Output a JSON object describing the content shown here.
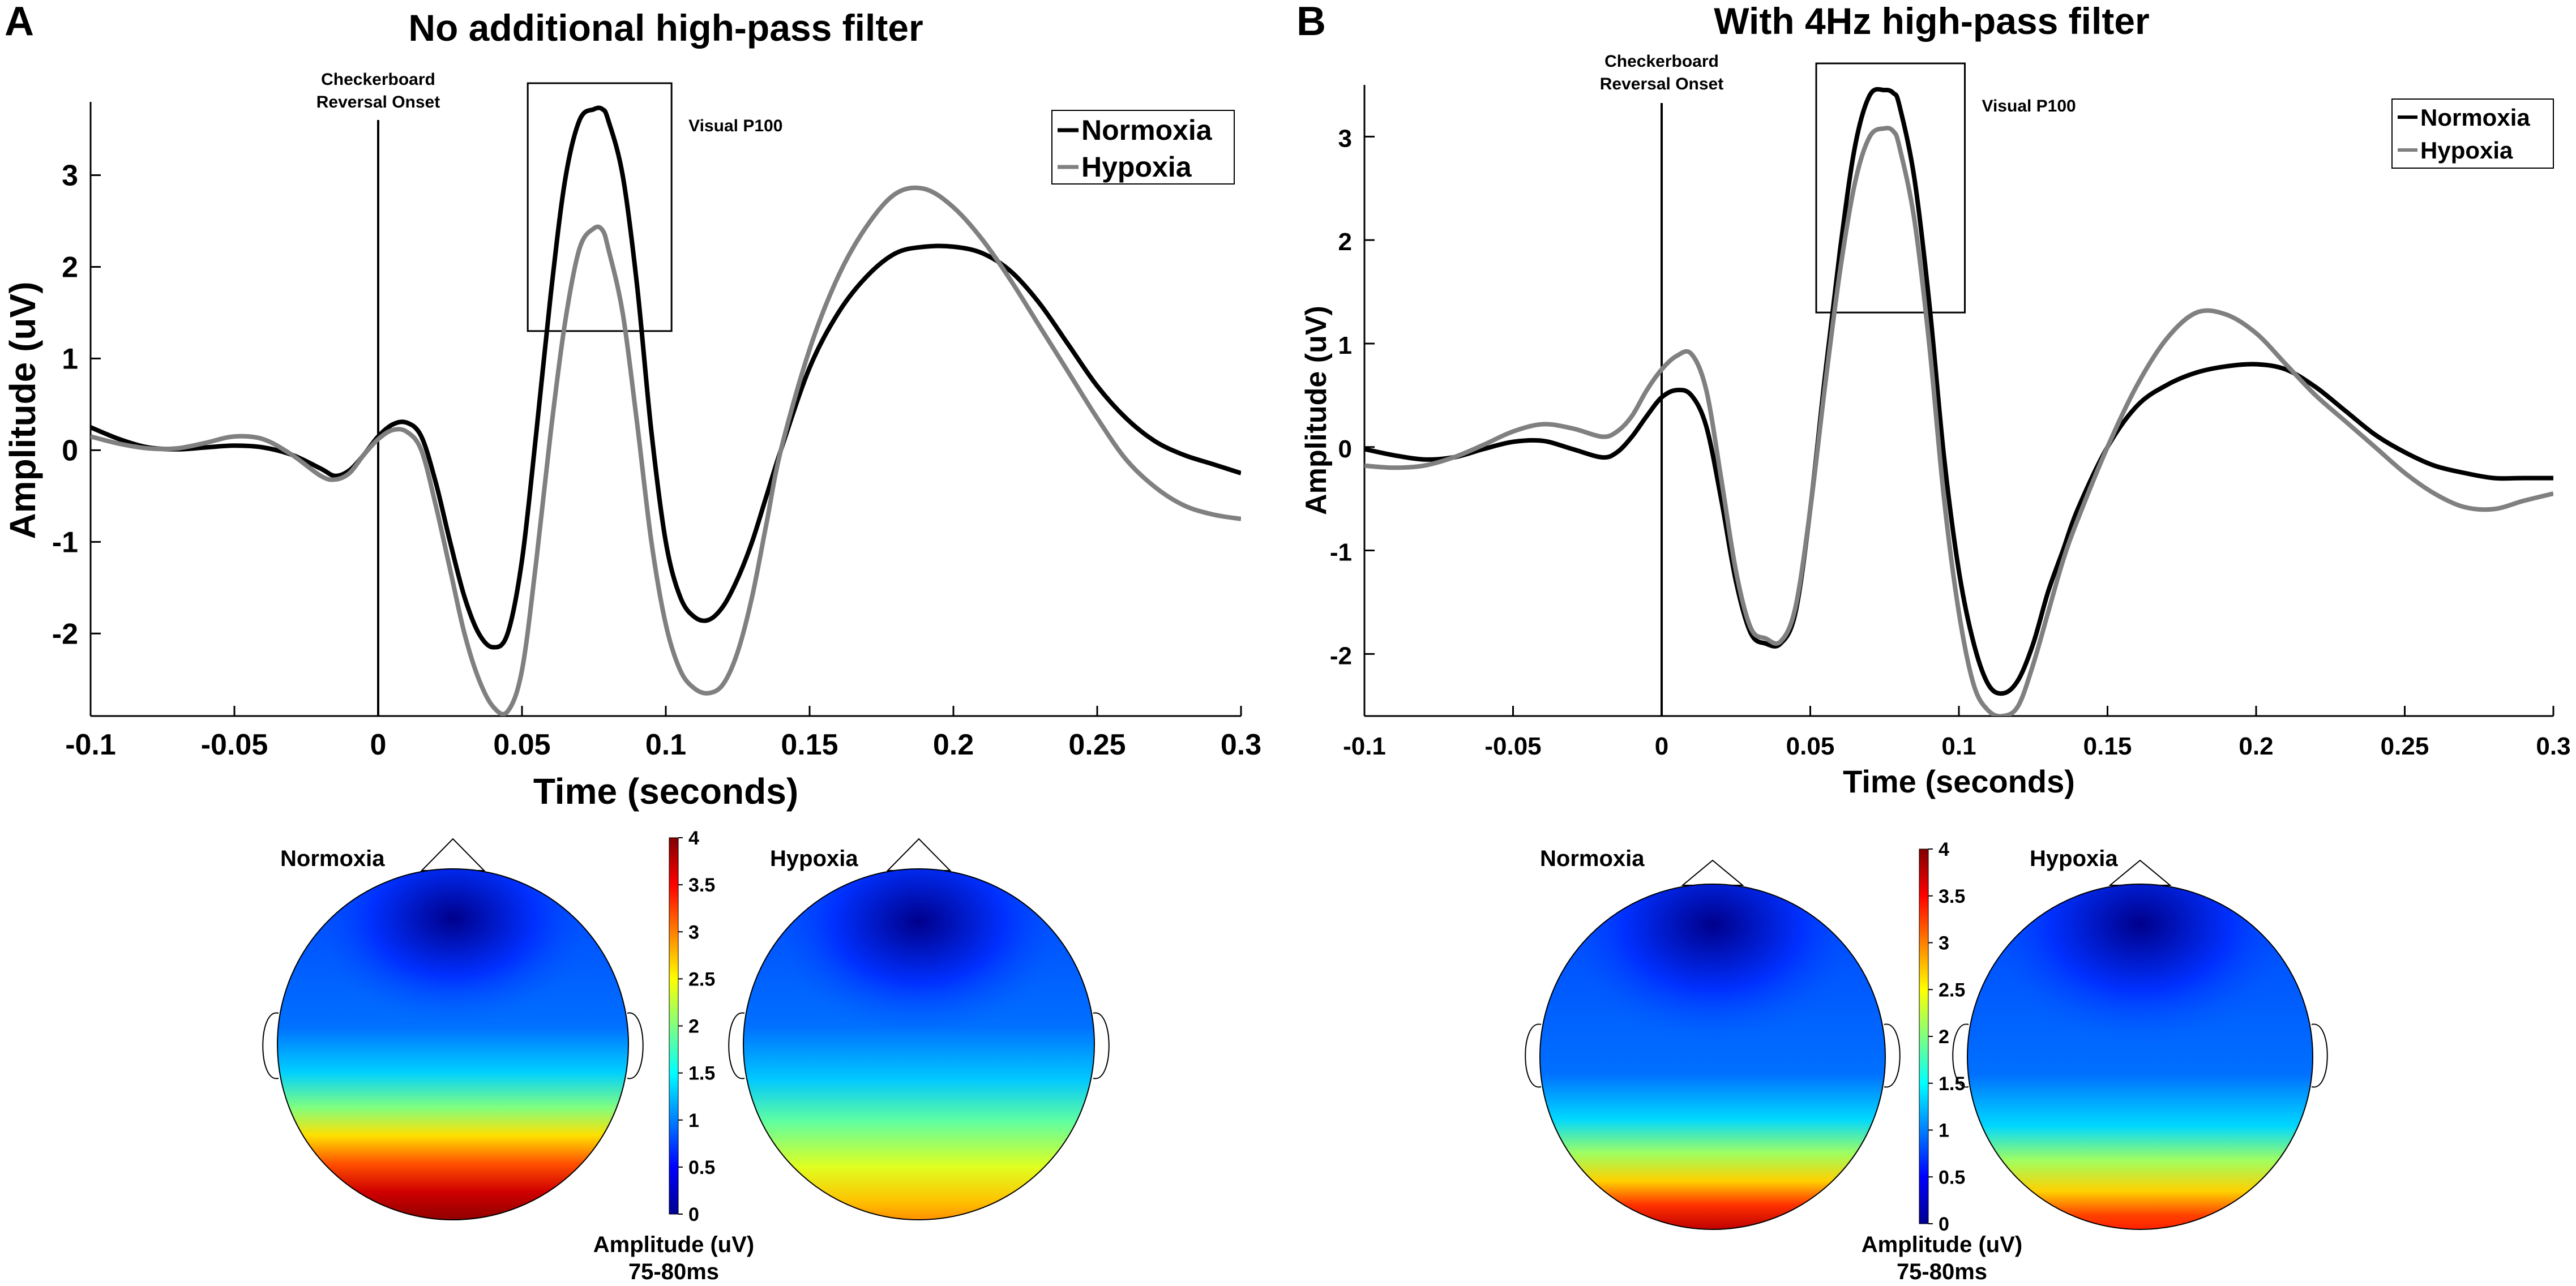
{
  "panels": [
    {
      "letter": "A",
      "title": "No additional high-pass filter"
    },
    {
      "letter": "B",
      "title": "With 4Hz high-pass filter"
    }
  ],
  "colors": {
    "normoxia": "#000000",
    "hypoxia": "#808080"
  },
  "topo": {
    "normoxia_label": "Normoxia",
    "hypoxia_label": "Hypoxia",
    "colorbar_label": "Amplitude (uV)",
    "window_label": "75-80ms",
    "colorbar_ticks": [
      "0",
      "0.5",
      "1",
      "1.5",
      "2",
      "2.5",
      "3",
      "3.5",
      "4"
    ],
    "colormap": "jet",
    "clim": [
      0,
      4
    ]
  },
  "chart_data": [
    {
      "type": "line",
      "title": "No additional high-pass filter",
      "xlabel": "Time (seconds)",
      "ylabel": "Amplitude (uV)",
      "xlim": [
        -0.1,
        0.3
      ],
      "ylim": [
        -2.9,
        3.8
      ],
      "xticks": [
        "-0.1",
        "-0.05",
        "0",
        "0.05",
        "0.1",
        "0.15",
        "0.2",
        "0.25",
        "0.3"
      ],
      "yticks": [
        "-2",
        "-1",
        "0",
        "1",
        "2",
        "3"
      ],
      "annotations": {
        "onset": "Checkerboard Reversal Onset",
        "onset_line1": "Checkerboard",
        "onset_line2": "Reversal Onset",
        "peak": "Visual P100"
      },
      "p100_box": {
        "x": [
          0.052,
          0.102
        ],
        "y": [
          1.3,
          4.0
        ]
      },
      "legend": [
        "Normoxia",
        "Hypoxia"
      ],
      "legend_position": "top-right",
      "series": [
        {
          "name": "Normoxia",
          "x": [
            -0.1,
            -0.09,
            -0.08,
            -0.07,
            -0.06,
            -0.05,
            -0.04,
            -0.03,
            -0.02,
            -0.015,
            -0.01,
            -0.005,
            0,
            0.005,
            0.01,
            0.015,
            0.02,
            0.025,
            0.03,
            0.035,
            0.04,
            0.045,
            0.05,
            0.055,
            0.06,
            0.065,
            0.07,
            0.075,
            0.078,
            0.08,
            0.085,
            0.09,
            0.095,
            0.1,
            0.105,
            0.11,
            0.115,
            0.12,
            0.125,
            0.13,
            0.135,
            0.14,
            0.15,
            0.16,
            0.17,
            0.18,
            0.19,
            0.2,
            0.21,
            0.22,
            0.23,
            0.24,
            0.25,
            0.26,
            0.27,
            0.28,
            0.29,
            0.3
          ],
          "y": [
            0.25,
            0.12,
            0.03,
            0.01,
            0.03,
            0.05,
            0.03,
            -0.05,
            -0.2,
            -0.28,
            -0.22,
            -0.05,
            0.15,
            0.28,
            0.3,
            0.15,
            -0.35,
            -1.0,
            -1.6,
            -2.0,
            -2.15,
            -2.0,
            -1.2,
            0.2,
            1.7,
            2.95,
            3.6,
            3.72,
            3.72,
            3.6,
            3.0,
            1.8,
            0.2,
            -1.0,
            -1.6,
            -1.82,
            -1.85,
            -1.7,
            -1.4,
            -1.0,
            -0.5,
            0.0,
            0.9,
            1.5,
            1.9,
            2.15,
            2.22,
            2.22,
            2.15,
            1.95,
            1.6,
            1.15,
            0.7,
            0.35,
            0.1,
            -0.05,
            -0.15,
            -0.25
          ]
        },
        {
          "name": "Hypoxia",
          "x": [
            -0.1,
            -0.09,
            -0.08,
            -0.07,
            -0.06,
            -0.05,
            -0.04,
            -0.03,
            -0.02,
            -0.015,
            -0.01,
            -0.005,
            0,
            0.005,
            0.01,
            0.015,
            0.02,
            0.025,
            0.03,
            0.035,
            0.04,
            0.045,
            0.05,
            0.055,
            0.06,
            0.065,
            0.07,
            0.075,
            0.078,
            0.08,
            0.085,
            0.09,
            0.095,
            0.1,
            0.105,
            0.11,
            0.115,
            0.12,
            0.125,
            0.13,
            0.135,
            0.14,
            0.15,
            0.16,
            0.17,
            0.18,
            0.19,
            0.2,
            0.21,
            0.22,
            0.23,
            0.24,
            0.25,
            0.26,
            0.27,
            0.28,
            0.29,
            0.3
          ],
          "y": [
            0.15,
            0.07,
            0.02,
            0.02,
            0.08,
            0.15,
            0.12,
            -0.05,
            -0.28,
            -0.32,
            -0.25,
            -0.05,
            0.12,
            0.22,
            0.2,
            0.0,
            -0.6,
            -1.3,
            -2.0,
            -2.5,
            -2.8,
            -2.85,
            -2.4,
            -1.2,
            0.2,
            1.4,
            2.2,
            2.42,
            2.4,
            2.2,
            1.5,
            0.3,
            -1.0,
            -1.9,
            -2.4,
            -2.6,
            -2.65,
            -2.55,
            -2.2,
            -1.6,
            -0.8,
            0.0,
            1.1,
            1.9,
            2.45,
            2.8,
            2.85,
            2.65,
            2.3,
            1.85,
            1.35,
            0.85,
            0.35,
            -0.1,
            -0.4,
            -0.6,
            -0.7,
            -0.75
          ]
        }
      ]
    },
    {
      "type": "line",
      "title": "With 4Hz high-pass filter",
      "xlabel": "Time (seconds)",
      "ylabel": "Amplitude (uV)",
      "xlim": [
        -0.1,
        0.3
      ],
      "ylim": [
        -2.6,
        3.5
      ],
      "xticks": [
        "-0.1",
        "-0.05",
        "0",
        "0.05",
        "0.1",
        "0.15",
        "0.2",
        "0.25",
        "0.3"
      ],
      "yticks": [
        "-2",
        "-1",
        "0",
        "1",
        "2",
        "3"
      ],
      "annotations": {
        "onset": "Checkerboard Reversal Onset",
        "onset_line1": "Checkerboard",
        "onset_line2": "Reversal Onset",
        "peak": "Visual P100"
      },
      "p100_box": {
        "x": [
          0.052,
          0.102
        ],
        "y": [
          1.3,
          3.8
        ]
      },
      "legend": [
        "Normoxia",
        "Hypoxia"
      ],
      "legend_position": "top-right",
      "series": [
        {
          "name": "Normoxia",
          "x": [
            -0.1,
            -0.09,
            -0.08,
            -0.07,
            -0.06,
            -0.05,
            -0.04,
            -0.03,
            -0.02,
            -0.015,
            -0.01,
            -0.005,
            0,
            0.005,
            0.01,
            0.015,
            0.02,
            0.025,
            0.03,
            0.035,
            0.04,
            0.045,
            0.05,
            0.055,
            0.06,
            0.065,
            0.07,
            0.075,
            0.078,
            0.08,
            0.085,
            0.09,
            0.095,
            0.1,
            0.105,
            0.11,
            0.115,
            0.12,
            0.125,
            0.13,
            0.135,
            0.14,
            0.15,
            0.16,
            0.17,
            0.18,
            0.19,
            0.2,
            0.21,
            0.22,
            0.23,
            0.24,
            0.25,
            0.26,
            0.27,
            0.28,
            0.29,
            0.3
          ],
          "y": [
            -0.02,
            -0.08,
            -0.12,
            -0.1,
            -0.02,
            0.05,
            0.06,
            -0.02,
            -0.1,
            -0.05,
            0.1,
            0.3,
            0.48,
            0.55,
            0.5,
            0.2,
            -0.5,
            -1.3,
            -1.8,
            -1.9,
            -1.9,
            -1.6,
            -0.6,
            0.7,
            1.9,
            2.9,
            3.4,
            3.45,
            3.42,
            3.3,
            2.6,
            1.4,
            -0.1,
            -1.2,
            -1.9,
            -2.3,
            -2.38,
            -2.25,
            -1.9,
            -1.4,
            -1.0,
            -0.6,
            0.0,
            0.4,
            0.6,
            0.72,
            0.78,
            0.8,
            0.75,
            0.58,
            0.35,
            0.12,
            -0.05,
            -0.18,
            -0.25,
            -0.3,
            -0.3,
            -0.3
          ]
        },
        {
          "name": "Hypoxia",
          "x": [
            -0.1,
            -0.09,
            -0.08,
            -0.07,
            -0.06,
            -0.05,
            -0.04,
            -0.03,
            -0.02,
            -0.015,
            -0.01,
            -0.005,
            0,
            0.005,
            0.01,
            0.015,
            0.02,
            0.025,
            0.03,
            0.035,
            0.04,
            0.045,
            0.05,
            0.055,
            0.06,
            0.065,
            0.07,
            0.075,
            0.078,
            0.08,
            0.085,
            0.09,
            0.095,
            0.1,
            0.105,
            0.11,
            0.115,
            0.12,
            0.125,
            0.13,
            0.135,
            0.14,
            0.15,
            0.16,
            0.17,
            0.18,
            0.19,
            0.2,
            0.21,
            0.22,
            0.23,
            0.24,
            0.25,
            0.26,
            0.27,
            0.28,
            0.29,
            0.3
          ],
          "y": [
            -0.18,
            -0.2,
            -0.18,
            -0.1,
            0.02,
            0.15,
            0.22,
            0.18,
            0.1,
            0.15,
            0.3,
            0.55,
            0.75,
            0.88,
            0.9,
            0.55,
            -0.3,
            -1.2,
            -1.75,
            -1.85,
            -1.88,
            -1.55,
            -0.6,
            0.6,
            1.7,
            2.55,
            3.0,
            3.08,
            3.05,
            2.9,
            2.2,
            1.0,
            -0.5,
            -1.6,
            -2.3,
            -2.55,
            -2.6,
            -2.5,
            -2.1,
            -1.6,
            -1.1,
            -0.7,
            0.0,
            0.6,
            1.05,
            1.3,
            1.28,
            1.1,
            0.8,
            0.5,
            0.25,
            0.0,
            -0.25,
            -0.45,
            -0.58,
            -0.6,
            -0.52,
            -0.45
          ]
        }
      ]
    }
  ]
}
